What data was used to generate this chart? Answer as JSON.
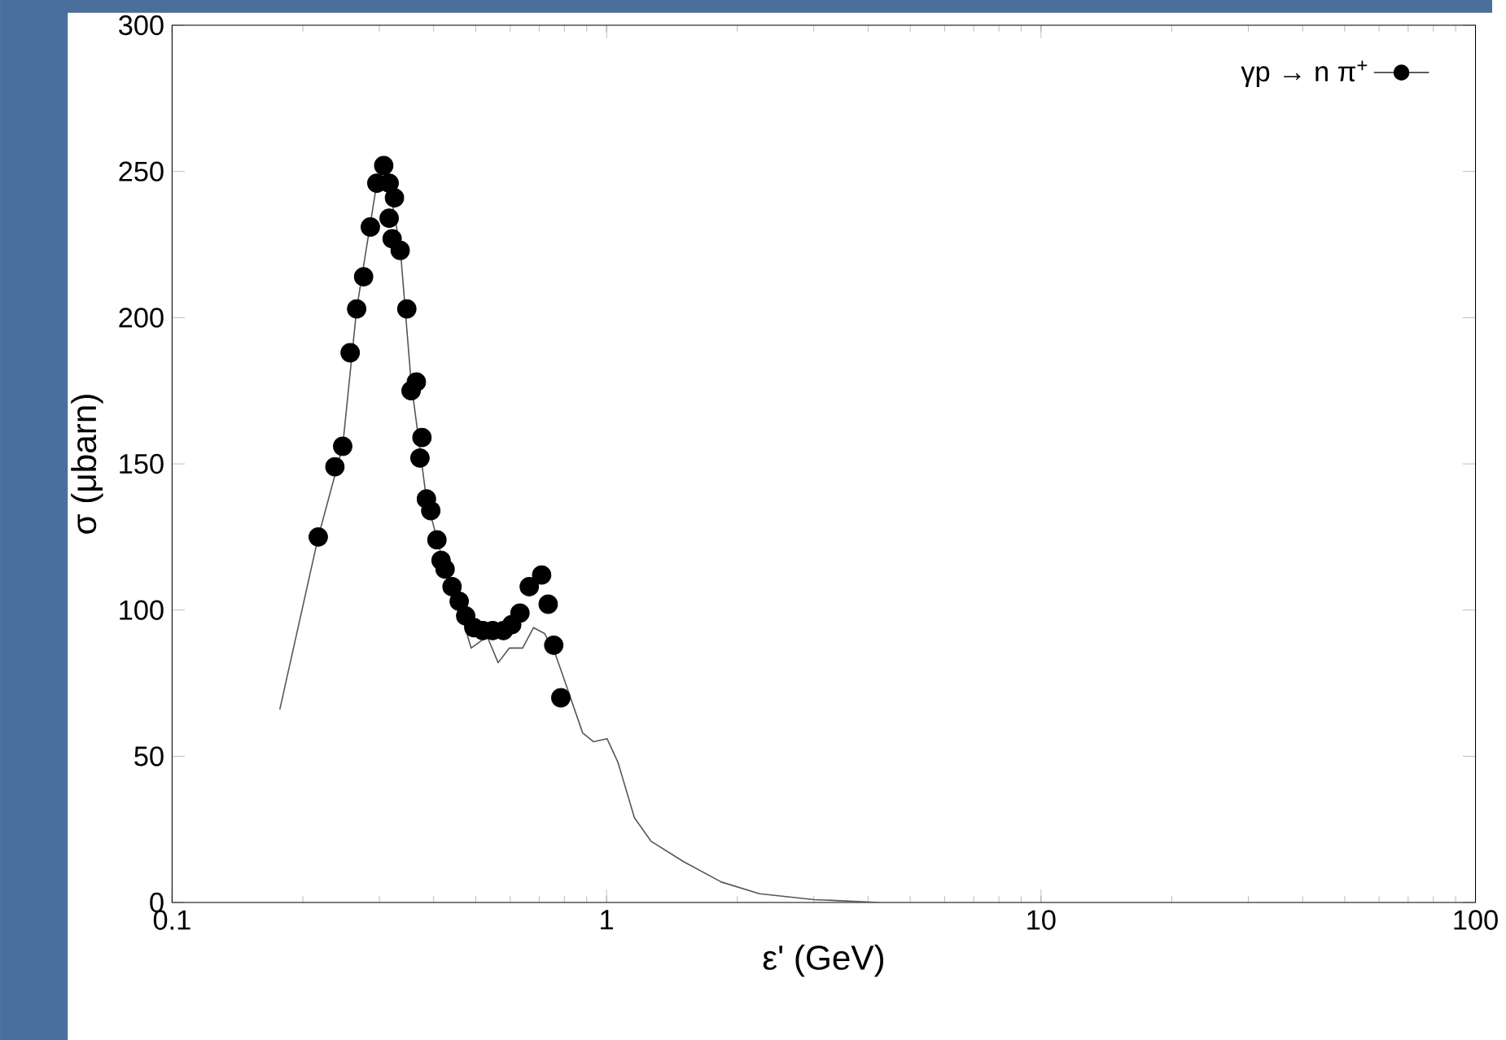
{
  "chart_data": {
    "type": "scatter",
    "xlabel": "ε'      (GeV)",
    "ylabel": "σ (μbarn)",
    "log": "x",
    "xlim": [
      0.1,
      100
    ],
    "xticks": [
      0.1,
      1,
      10,
      100
    ],
    "ylim": [
      0,
      300
    ],
    "yticks": [
      0,
      50,
      100,
      150,
      200,
      250,
      300
    ],
    "grid": false,
    "legend": "top right",
    "series": [
      {
        "type": "line",
        "color": "#555555",
        "marker": "none",
        "line_style": "solid",
        "x": [
          0.177,
          0.217,
          0.247,
          0.266,
          0.296,
          0.31,
          0.335,
          0.355,
          0.385,
          0.425,
          0.46,
          0.488,
          0.531,
          0.563,
          0.597,
          0.641,
          0.679,
          0.72,
          0.762,
          0.796,
          0.881,
          0.933,
          1.003,
          1.062,
          1.159,
          1.265,
          1.503,
          1.838,
          2.25,
          3.0,
          4.24
        ],
        "values": [
          66,
          125,
          156,
          203,
          246,
          252,
          224,
          178,
          138,
          114,
          100,
          87,
          91,
          82,
          87,
          87,
          94,
          92,
          85,
          77,
          58,
          55,
          56,
          48,
          29,
          21,
          14,
          7,
          3,
          1,
          0
        ]
      },
      {
        "name": "γp → n π$^{+}$",
        "color": "#000000",
        "marker": "circle",
        "x": [
          0.217,
          0.237,
          0.247,
          0.257,
          0.266,
          0.276,
          0.286,
          0.296,
          0.307,
          0.316,
          0.325,
          0.316,
          0.321,
          0.335,
          0.347,
          0.365,
          0.355,
          0.376,
          0.372,
          0.385,
          0.394,
          0.407,
          0.416,
          0.425,
          0.441,
          0.458,
          0.474,
          0.495,
          0.519,
          0.547,
          0.579,
          0.605,
          0.632,
          0.664,
          0.709,
          0.734,
          0.756,
          0.785
        ],
        "values": [
          125,
          149,
          156,
          188,
          203,
          214,
          231,
          246,
          252,
          246,
          241,
          234,
          227,
          223,
          203,
          178,
          175,
          159,
          152,
          138,
          134,
          124,
          117,
          114,
          108,
          103,
          98,
          94,
          93,
          93,
          93,
          95,
          99,
          108,
          112,
          102,
          88,
          70
        ]
      }
    ]
  }
}
